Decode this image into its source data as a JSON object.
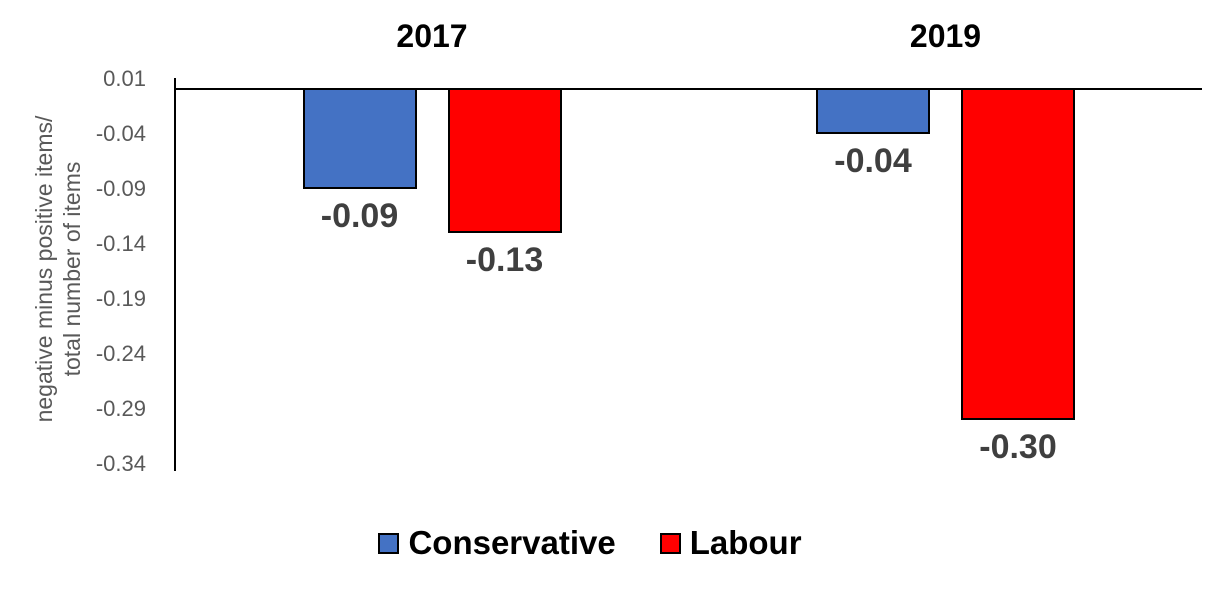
{
  "chart_data": {
    "type": "bar",
    "title": "",
    "categories": [
      "2017",
      "2019"
    ],
    "series": [
      {
        "name": "Conservative",
        "color": "#4472C4",
        "values": [
          -0.09,
          -0.04
        ],
        "labels": [
          "-0.09",
          "-0.04"
        ]
      },
      {
        "name": "Labour",
        "color": "#FF0000",
        "values": [
          -0.13,
          -0.3
        ],
        "labels": [
          "-0.13",
          "-0.30"
        ]
      }
    ],
    "xlabel": "",
    "ylabel_line1": "negative minus positive items/",
    "ylabel_line2": "total number of items",
    "yticks": [
      {
        "value": 0.01,
        "label": "0.01"
      },
      {
        "value": -0.04,
        "label": "-0.04"
      },
      {
        "value": -0.09,
        "label": "-0.09"
      },
      {
        "value": -0.14,
        "label": "-0.14"
      },
      {
        "value": -0.19,
        "label": "-0.19"
      },
      {
        "value": -0.24,
        "label": "-0.24"
      },
      {
        "value": -0.29,
        "label": "-0.29"
      },
      {
        "value": -0.34,
        "label": "-0.34"
      }
    ],
    "ylim": [
      -0.34,
      0.01
    ],
    "grid": false,
    "legend_position": "bottom"
  },
  "colors": {
    "conservative": "#4472C4",
    "labour": "#FF0000",
    "axis_line": "#000000",
    "tick_label": "#595959",
    "data_label": "#3F3F3F",
    "group_title": "#000000",
    "legend_text": "#000000",
    "background": "#FFFFFF"
  }
}
